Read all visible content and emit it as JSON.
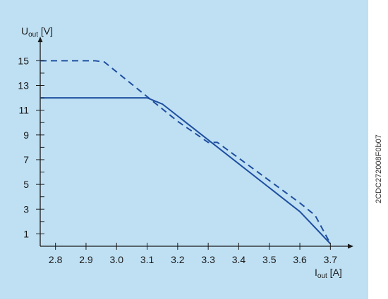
{
  "side_code": "2CDC272008F0b07",
  "colors": {
    "panel": "#bfe0f3",
    "axis": "#1a1a1a",
    "series": "#1f4fa0"
  },
  "chart_data": {
    "type": "line",
    "title": "",
    "xlabel": {
      "main": "I",
      "sub": "out",
      "unit": " [A]"
    },
    "ylabel": {
      "main": "U",
      "sub": "out",
      "unit": " [V]"
    },
    "xlim": [
      2.75,
      3.75
    ],
    "ylim": [
      0,
      16.5
    ],
    "x_ticks": [
      2.8,
      2.9,
      3.0,
      3.1,
      3.2,
      3.3,
      3.4,
      3.5,
      3.6,
      3.7
    ],
    "x_tick_labels": [
      "2.8",
      "2.9",
      "3.0",
      "3.1",
      "3.2",
      "3.3",
      "3.4",
      "3.5",
      "3.6",
      "3.7"
    ],
    "y_ticks": [
      1,
      3,
      5,
      7,
      9,
      11,
      13,
      15
    ],
    "y_tick_labels": [
      "1",
      "3",
      "5",
      "7",
      "9",
      "11",
      "13",
      "15"
    ],
    "y_minor_ticks": [
      2,
      4,
      6,
      8,
      10,
      12,
      14
    ],
    "grid": false,
    "series": [
      {
        "style": "solid",
        "x": [
          2.75,
          3.1,
          3.15,
          3.6,
          3.7
        ],
        "y": [
          12.0,
          12.0,
          11.5,
          2.8,
          0.2
        ]
      },
      {
        "style": "dashed",
        "x": [
          2.75,
          2.93,
          2.96,
          3.2,
          3.3,
          3.33,
          3.6,
          3.65,
          3.7
        ],
        "y": [
          15.0,
          15.0,
          14.9,
          10.1,
          8.4,
          8.4,
          3.5,
          2.5,
          0.2
        ]
      }
    ]
  }
}
